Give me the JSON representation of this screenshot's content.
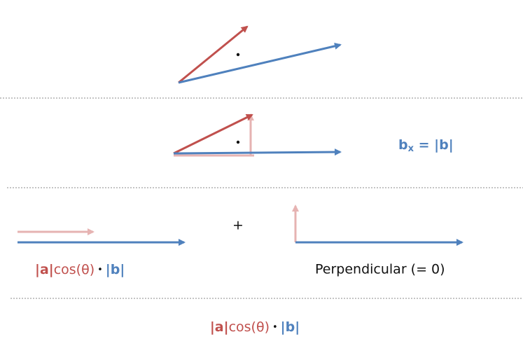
{
  "row2": {
    "label": {
      "base": "b",
      "sub": "x",
      "rest": " = |b|"
    }
  },
  "row3": {
    "plus": "+",
    "left_label": {
      "a": "|a|",
      "cos": "cos(θ)",
      "dot": "•",
      "b": "|b|"
    },
    "right_label": "Perpendicular (= 0)"
  },
  "result": {
    "a": "|a|",
    "cos": "cos(θ)",
    "dot": "•",
    "b": "|b|"
  }
}
